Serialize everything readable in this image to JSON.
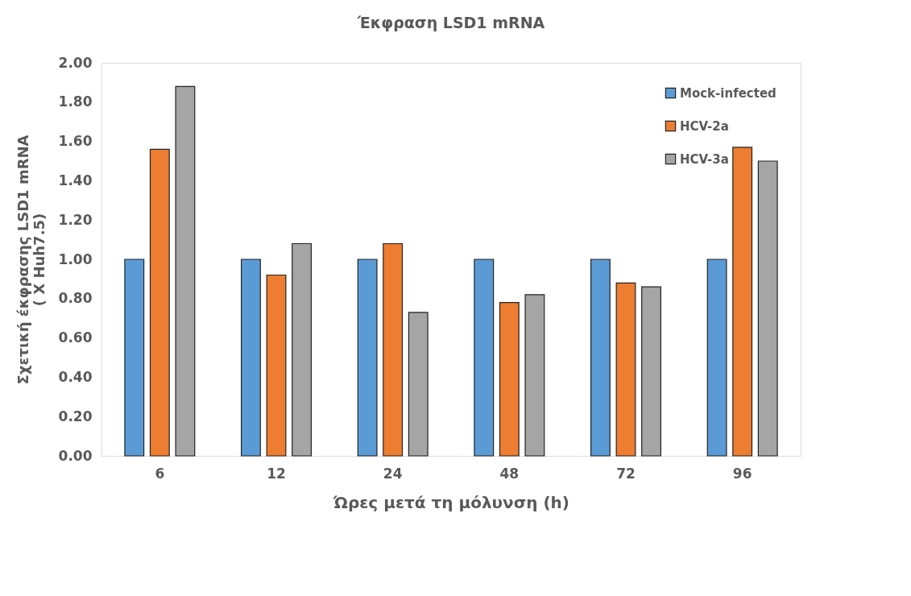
{
  "chart_data": {
    "type": "bar",
    "title": "Έκφραση LSD1 mRNA",
    "xlabel": "Ώρες μετά τη μόλυνση (h)",
    "ylabel": "Σχετική έκφρασης LSD1 mRNA\n( X Huh7.5)",
    "categories": [
      "6",
      "12",
      "24",
      "48",
      "72",
      "96"
    ],
    "series": [
      {
        "name": "Mock-infected",
        "color": "#5b9bd5",
        "values": [
          1.0,
          1.0,
          1.0,
          1.0,
          1.0,
          1.0
        ]
      },
      {
        "name": "HCV-2a",
        "color": "#ed7d31",
        "values": [
          1.56,
          0.92,
          1.08,
          0.78,
          0.88,
          1.57
        ]
      },
      {
        "name": "HCV-3a",
        "color": "#a5a5a5",
        "values": [
          1.88,
          1.08,
          0.73,
          0.82,
          0.86,
          1.5
        ]
      }
    ],
    "ylim": [
      0,
      2
    ],
    "yticks": [
      {
        "value": 0,
        "label": "0.00"
      },
      {
        "value": 0.2,
        "label": "0.20"
      },
      {
        "value": 0.4,
        "label": "0.40"
      },
      {
        "value": 0.6,
        "label": "0.60"
      },
      {
        "value": 0.8,
        "label": "0.80"
      },
      {
        "value": 1.0,
        "label": "1.00"
      },
      {
        "value": 1.2,
        "label": "1.20"
      },
      {
        "value": 1.4,
        "label": "1.40"
      },
      {
        "value": 1.6,
        "label": "1.60"
      },
      {
        "value": 1.8,
        "label": "1.80"
      },
      {
        "value": 2.0,
        "label": "2.00"
      }
    ],
    "grid": false,
    "legend": "top right"
  }
}
